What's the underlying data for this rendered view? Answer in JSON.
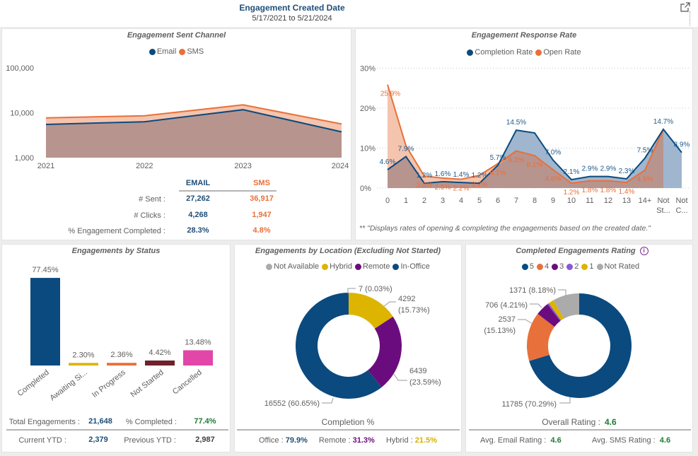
{
  "header": {
    "title": "Engagement Created Date",
    "date_range": "5/17/2021 to 5/21/2024",
    "export_icon": "external-link-icon"
  },
  "sent_channel": {
    "table": {
      "headers": [
        "EMAIL",
        "SMS"
      ],
      "rows": [
        {
          "label": "# Sent :",
          "email": "27,262",
          "sms": "36,917"
        },
        {
          "label": "# Clicks :",
          "email": "4,268",
          "sms": "1,947"
        },
        {
          "label": "% Engagement Completed :",
          "email": "28.3%",
          "sms": "4.8%"
        }
      ]
    }
  },
  "response_rate": {
    "footnote": "** \"Displays rates of opening & completing the engagements based on the created date.\""
  },
  "status": {
    "total_label": "Total Engagements :",
    "total_value": "21,648",
    "completed_label": "% Completed :",
    "completed_value": "77.4%",
    "current_ytd_label": "Current YTD :",
    "current_ytd_value": "2,379",
    "previous_ytd_label": "Previous YTD :",
    "previous_ytd_value": "2,987"
  },
  "location": {
    "completion_title": "Completion %",
    "stats": [
      {
        "label": "Office :",
        "value": "79.9%"
      },
      {
        "label": "Remote :",
        "value": "31.3%"
      },
      {
        "label": "Hybrid :",
        "value": "21.5%"
      }
    ]
  },
  "rating": {
    "info_icon": "info-icon",
    "overall_label": "Overall Rating :",
    "overall_value": "4.6",
    "email_label": "Avg. Email Rating :",
    "email_value": "4.6",
    "sms_label": "Avg. SMS Rating :",
    "sms_value": "4.6"
  },
  "chart_data": [
    {
      "type": "area",
      "title": "Engagement Sent Channel",
      "x": [
        "2021",
        "2022",
        "2023",
        "2024"
      ],
      "yscale": "log",
      "ylim": [
        1000,
        100000
      ],
      "yticks": [
        1000,
        10000,
        100000
      ],
      "ytick_labels": [
        "1,000",
        "10,000",
        "100,000"
      ],
      "legend_position": "top-center",
      "grid": false,
      "series": [
        {
          "name": "Email",
          "color": "#0B4A7E",
          "fill": "#B8948E",
          "values": [
            5500,
            6300,
            11700,
            3762
          ]
        },
        {
          "name": "SMS",
          "color": "#E8703A",
          "fill": "#F4C4AE",
          "values": [
            7700,
            8600,
            15000,
            5617
          ]
        }
      ]
    },
    {
      "type": "area",
      "title": "Engagement Response Rate",
      "categories": [
        "0",
        "1",
        "2",
        "3",
        "4",
        "5",
        "6",
        "7",
        "8",
        "9",
        "10",
        "11",
        "12",
        "13",
        "14+",
        "Not St...",
        "Not C..."
      ],
      "ylim": [
        0,
        30
      ],
      "yticks": [
        0,
        10,
        20,
        30
      ],
      "ytick_labels": [
        "0%",
        "10%",
        "20%",
        "30%"
      ],
      "legend_position": "top-center",
      "grid": true,
      "overlap_fill": "#B8948E",
      "series": [
        {
          "name": "Completion Rate",
          "color": "#0B4A7E",
          "fill": "#A0B6CE",
          "label_color": "#1F5A8C",
          "values": [
            4.6,
            7.9,
            1.2,
            1.6,
            1.4,
            1.2,
            5.7,
            14.5,
            13.8,
            7.0,
            2.1,
            2.9,
            2.9,
            2.3,
            7.5,
            14.7,
            8.9
          ],
          "labels": [
            "4.6%",
            "7.9%",
            "1.2%",
            "1.6%",
            "1.4%",
            "1.2%",
            "5.7%",
            "14.5%",
            null,
            "7.0%",
            "2.1%",
            "2.9%",
            "2.9%",
            "2.3%",
            "7.5%",
            "14.7%",
            "8.9%"
          ]
        },
        {
          "name": "Open Rate",
          "color": "#E8703A",
          "fill": "#F4C4AE",
          "label_color": "#E8703A",
          "values": [
            25.9,
            10.6,
            3.0,
            2.5,
            2.2,
            3.2,
            6.1,
            9.3,
            8.1,
            4.6,
            1.2,
            1.8,
            1.8,
            1.4,
            4.5,
            14.7,
            null
          ],
          "labels": [
            "25.9%",
            null,
            "3.0%",
            "2.5%",
            "2.2%",
            "3.2%",
            "6.1%",
            "9.3%",
            "8.1%",
            "4.6%",
            "1.2%",
            "1.8%",
            "1.8%",
            "1.4%",
            "4.5%",
            null,
            null
          ]
        }
      ]
    },
    {
      "type": "bar",
      "title": "Engagements by Status",
      "categories": [
        "Completed",
        "Awaiting Si...",
        "In Progress",
        "Not Started",
        "Cancelled"
      ],
      "values": [
        77.45,
        2.3,
        2.36,
        4.42,
        13.48
      ],
      "labels": [
        "77.45%",
        "2.30%",
        "2.36%",
        "4.42%",
        "13.48%"
      ],
      "colors": [
        "#0B4A7E",
        "#DDB400",
        "#E8703A",
        "#6E2229",
        "#E246A8"
      ],
      "ylabel": "",
      "xlabel": ""
    },
    {
      "type": "pie",
      "title": "Engagements by Location (Excluding Not Started)",
      "donut": true,
      "legend_position": "top-center",
      "labels": [
        "Not Available",
        "Hybrid",
        "Remote",
        "In-Office"
      ],
      "values": [
        7,
        4292,
        6439,
        16552
      ],
      "percents": [
        "0.03%",
        "15.73%",
        "23.59%",
        "60.65%"
      ],
      "colors": [
        "#ABABAB",
        "#DDB400",
        "#6B0C7E",
        "#0B4A7E"
      ]
    },
    {
      "type": "pie",
      "title": "Completed Engagements Rating",
      "donut": true,
      "legend_position": "top-center",
      "labels": [
        "5",
        "4",
        "3",
        "2",
        "1",
        "Not Rated"
      ],
      "values": [
        11785,
        2537,
        706,
        84,
        283,
        1371
      ],
      "percents": [
        "70.29%",
        "15.13%",
        "4.21%",
        null,
        null,
        "8.18%"
      ],
      "colors": [
        "#0B4A7E",
        "#E8703A",
        "#6B0C7E",
        "#8858D8",
        "#DDB400",
        "#ABABAB"
      ]
    }
  ]
}
